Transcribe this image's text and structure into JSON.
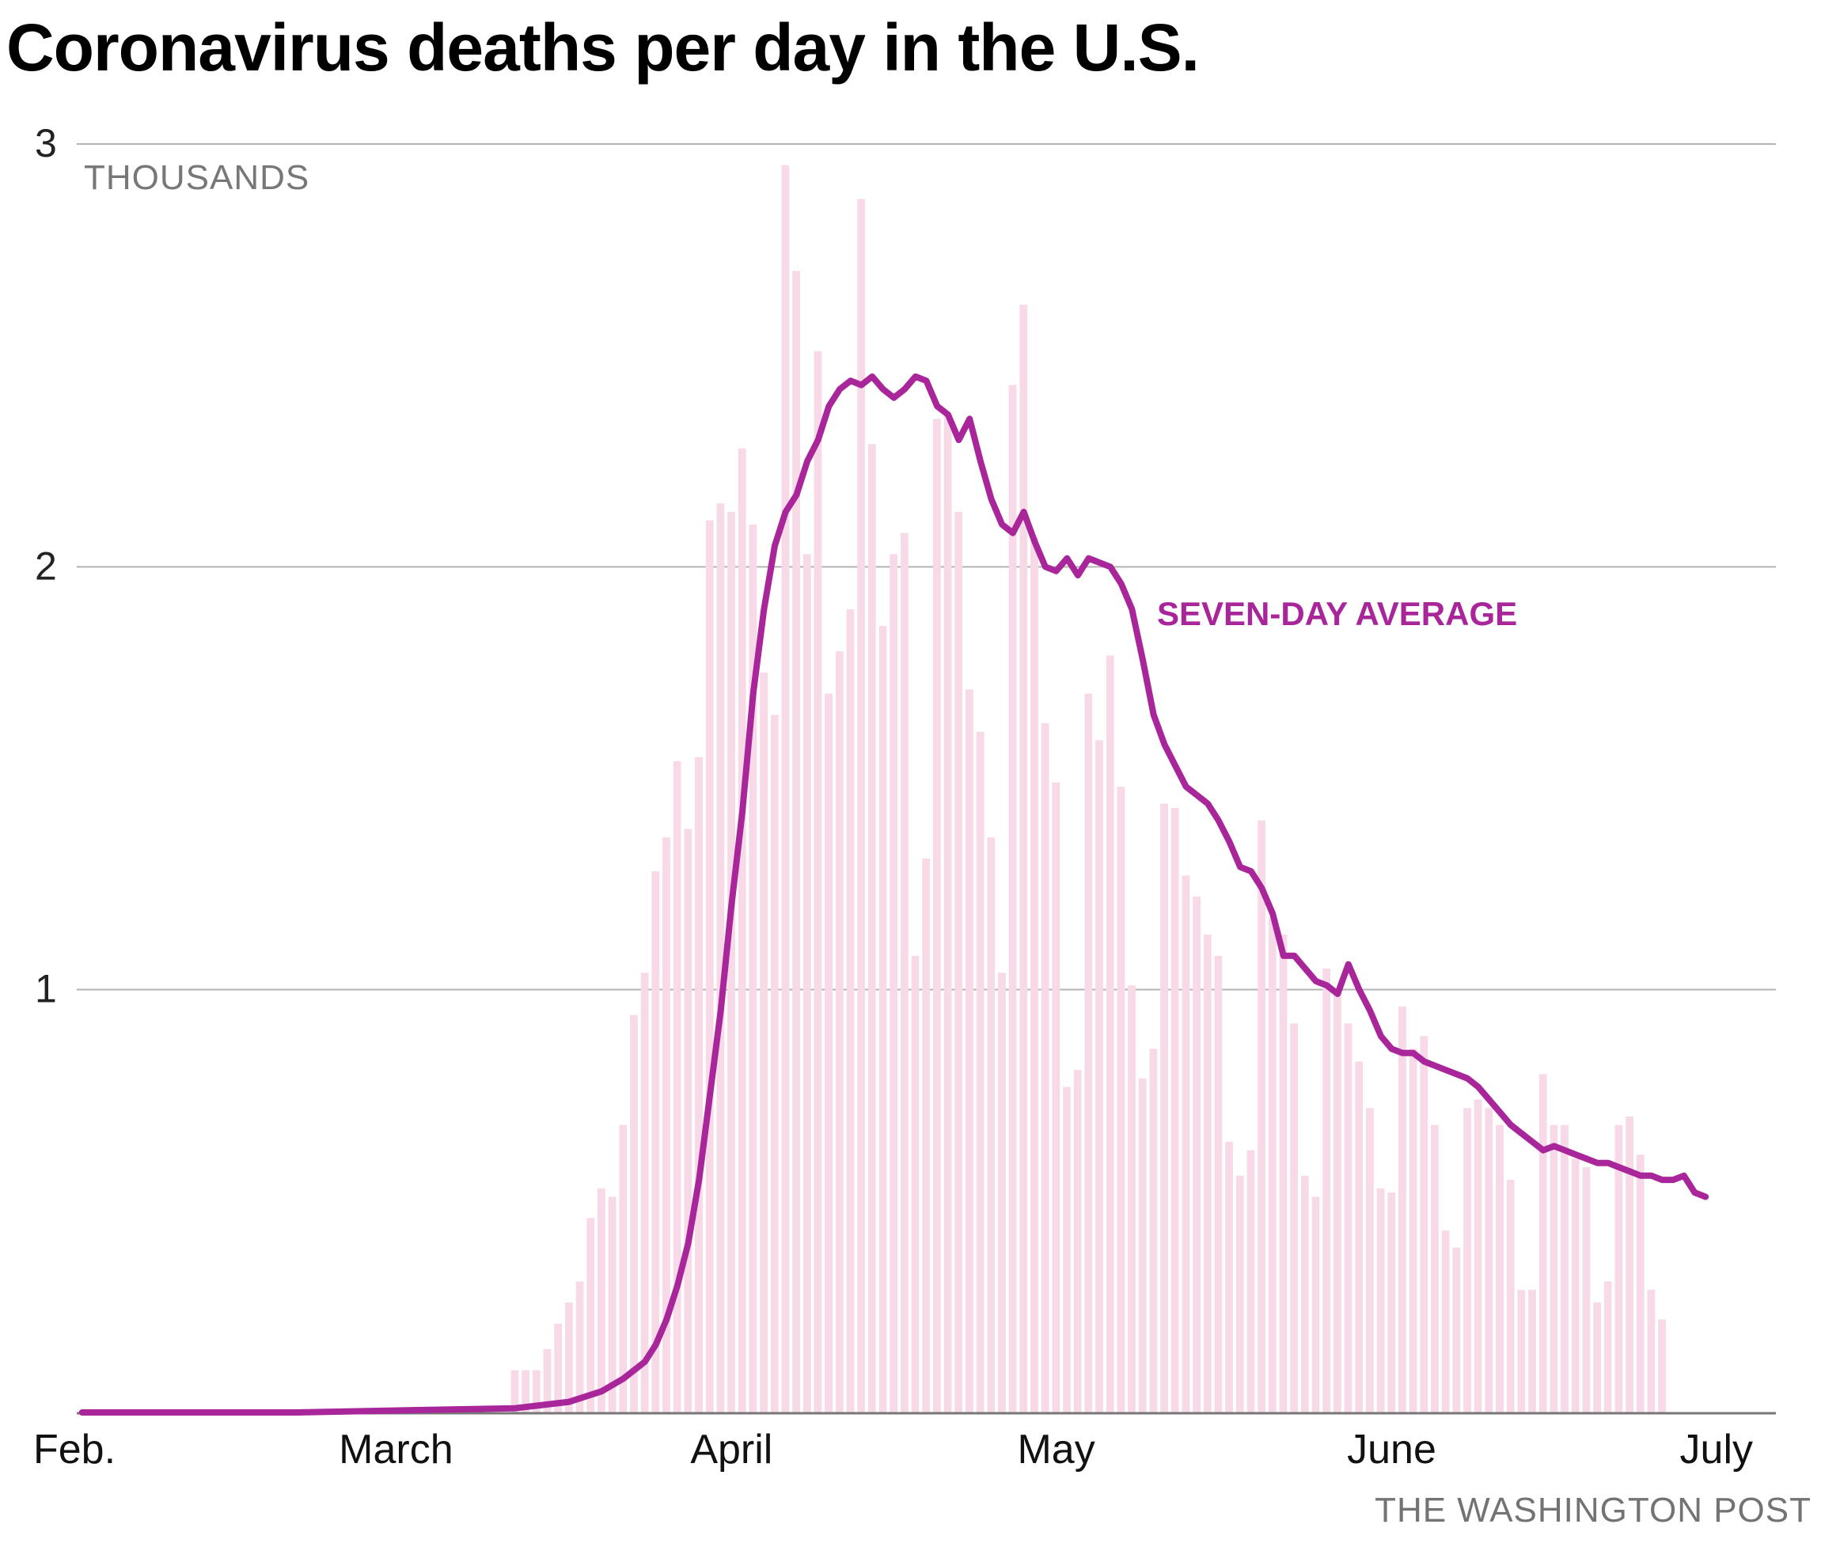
{
  "title": "Coronavirus deaths per day in the U.S.",
  "credit": "THE WASHINGTON POST",
  "colors": {
    "bar": "#f7d9e8",
    "line": "#a8269a",
    "grid": "#b3b3b3",
    "axis": "#777777",
    "text": "#222222",
    "unit": "#777777"
  },
  "chart_data": {
    "type": "bar",
    "title": "Coronavirus deaths per day in the U.S.",
    "ylabel": "THOUSANDS",
    "ylim": [
      0,
      3
    ],
    "yticks": [
      1,
      2,
      3
    ],
    "grid": true,
    "x_start": "Feb. 1",
    "x_month_labels": [
      "Feb.",
      "March",
      "April",
      "May",
      "June",
      "July"
    ],
    "x_month_start_day_index": [
      0,
      29,
      60,
      90,
      121,
      151
    ],
    "num_days": 157,
    "series": [
      {
        "name": "Daily deaths",
        "kind": "bars",
        "start_day_index": 40,
        "values": [
          0.1,
          0.1,
          0.1,
          0.15,
          0.21,
          0.26,
          0.31,
          0.46,
          0.53,
          0.51,
          0.68,
          0.94,
          1.04,
          1.28,
          1.36,
          1.54,
          1.38,
          1.55,
          2.11,
          2.15,
          2.13,
          2.28,
          2.1,
          1.75,
          1.65,
          2.95,
          2.7,
          2.03,
          2.51,
          1.7,
          1.8,
          1.9,
          2.87,
          2.29,
          1.86,
          2.03,
          2.08,
          1.08,
          1.31,
          2.35,
          2.36,
          2.13,
          1.71,
          1.61,
          1.36,
          1.04,
          2.43,
          2.62,
          2.07,
          1.63,
          1.49,
          0.77,
          0.81,
          1.7,
          1.59,
          1.79,
          1.48,
          1.01,
          0.79,
          0.86,
          1.44,
          1.43,
          1.27,
          1.22,
          1.13,
          1.08,
          0.64,
          0.56,
          0.62,
          1.4,
          1.17,
          1.13,
          0.92,
          0.56,
          0.51,
          1.05,
          0.99,
          0.92,
          0.83,
          0.72,
          0.53,
          0.52,
          0.96,
          0.86,
          0.89,
          0.68,
          0.43,
          0.39,
          0.72,
          0.74,
          0.72,
          0.68,
          0.55,
          0.29,
          0.29,
          0.8,
          0.68,
          0.68,
          0.6,
          0.58,
          0.26,
          0.31,
          0.68,
          0.7,
          0.61,
          0.29,
          0.22
        ]
      },
      {
        "name": "SEVEN-DAY AVERAGE",
        "kind": "line",
        "points": [
          [
            0,
            0.0
          ],
          [
            20,
            0.0
          ],
          [
            30,
            0.005
          ],
          [
            40,
            0.01
          ],
          [
            45,
            0.025
          ],
          [
            48,
            0.05
          ],
          [
            50,
            0.08
          ],
          [
            52,
            0.12
          ],
          [
            53,
            0.16
          ],
          [
            54,
            0.22
          ],
          [
            55,
            0.3
          ],
          [
            56,
            0.4
          ],
          [
            57,
            0.55
          ],
          [
            58,
            0.75
          ],
          [
            59,
            0.95
          ],
          [
            60,
            1.2
          ],
          [
            61,
            1.42
          ],
          [
            62,
            1.7
          ],
          [
            63,
            1.9
          ],
          [
            64,
            2.05
          ],
          [
            65,
            2.13
          ],
          [
            66,
            2.17
          ],
          [
            67,
            2.25
          ],
          [
            68,
            2.3
          ],
          [
            69,
            2.38
          ],
          [
            70,
            2.42
          ],
          [
            71,
            2.44
          ],
          [
            72,
            2.43
          ],
          [
            73,
            2.45
          ],
          [
            74,
            2.42
          ],
          [
            75,
            2.4
          ],
          [
            76,
            2.42
          ],
          [
            77,
            2.45
          ],
          [
            78,
            2.44
          ],
          [
            79,
            2.38
          ],
          [
            80,
            2.36
          ],
          [
            81,
            2.3
          ],
          [
            82,
            2.35
          ],
          [
            83,
            2.25
          ],
          [
            84,
            2.16
          ],
          [
            85,
            2.1
          ],
          [
            86,
            2.08
          ],
          [
            87,
            2.13
          ],
          [
            88,
            2.06
          ],
          [
            89,
            2.0
          ],
          [
            90,
            1.99
          ],
          [
            91,
            2.02
          ],
          [
            92,
            1.98
          ],
          [
            93,
            2.02
          ],
          [
            94,
            2.01
          ],
          [
            95,
            2.0
          ],
          [
            96,
            1.96
          ],
          [
            97,
            1.9
          ],
          [
            98,
            1.78
          ],
          [
            99,
            1.65
          ],
          [
            100,
            1.58
          ],
          [
            101,
            1.53
          ],
          [
            102,
            1.48
          ],
          [
            103,
            1.46
          ],
          [
            104,
            1.44
          ],
          [
            105,
            1.4
          ],
          [
            106,
            1.35
          ],
          [
            107,
            1.29
          ],
          [
            108,
            1.28
          ],
          [
            109,
            1.24
          ],
          [
            110,
            1.18
          ],
          [
            111,
            1.08
          ],
          [
            112,
            1.08
          ],
          [
            113,
            1.05
          ],
          [
            114,
            1.02
          ],
          [
            115,
            1.01
          ],
          [
            116,
            0.99
          ],
          [
            117,
            1.06
          ],
          [
            118,
            1.0
          ],
          [
            119,
            0.95
          ],
          [
            120,
            0.89
          ],
          [
            121,
            0.86
          ],
          [
            122,
            0.85
          ],
          [
            123,
            0.85
          ],
          [
            124,
            0.83
          ],
          [
            125,
            0.82
          ],
          [
            126,
            0.81
          ],
          [
            127,
            0.8
          ],
          [
            128,
            0.79
          ],
          [
            129,
            0.77
          ],
          [
            130,
            0.74
          ],
          [
            131,
            0.71
          ],
          [
            132,
            0.68
          ],
          [
            133,
            0.66
          ],
          [
            134,
            0.64
          ],
          [
            135,
            0.62
          ],
          [
            136,
            0.63
          ],
          [
            137,
            0.62
          ],
          [
            138,
            0.61
          ],
          [
            139,
            0.6
          ],
          [
            140,
            0.59
          ],
          [
            141,
            0.59
          ],
          [
            142,
            0.58
          ],
          [
            143,
            0.57
          ],
          [
            144,
            0.56
          ],
          [
            145,
            0.56
          ],
          [
            146,
            0.55
          ],
          [
            147,
            0.55
          ],
          [
            148,
            0.56
          ],
          [
            149,
            0.52
          ],
          [
            150,
            0.51
          ]
        ]
      }
    ],
    "annotations": [
      {
        "text": "SEVEN-DAY AVERAGE",
        "anchor": "near peak of average line, right of May"
      }
    ]
  }
}
